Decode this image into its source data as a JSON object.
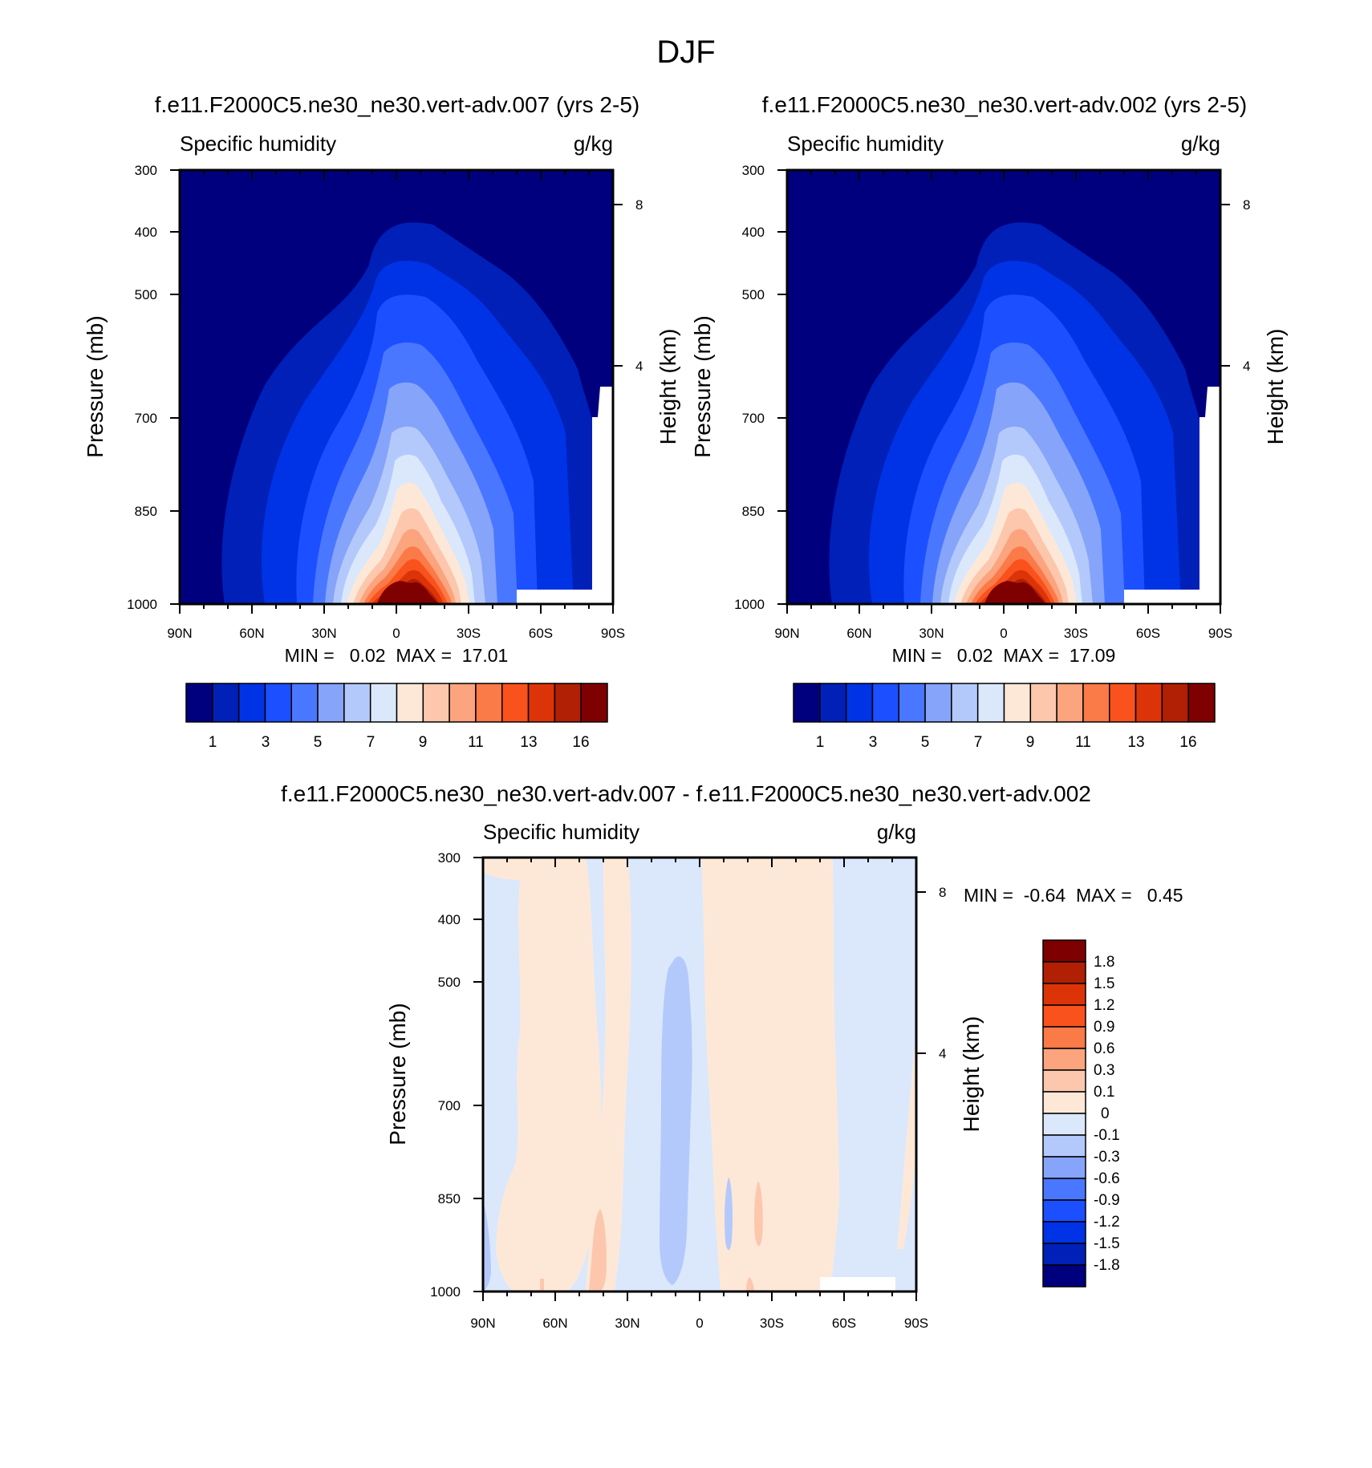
{
  "page_title": "DJF",
  "chart_data": [
    {
      "type": "heatmap",
      "title": "f.e11.F2000C5.ne30_ne30.vert-adv.007 (yrs 2-5)",
      "left_string": "Specific humidity",
      "right_string": "g/kg",
      "ylabel": "Pressure (mb)",
      "y2label": "Height (km)",
      "xticks": [
        "90N",
        "60N",
        "30N",
        "0",
        "30S",
        "60S",
        "90S"
      ],
      "yticks": [
        "300",
        "400",
        "500",
        "700",
        "850",
        "1000"
      ],
      "y2ticks": [
        "8",
        "4"
      ],
      "xlim": [
        90,
        -90
      ],
      "ylim": [
        1000,
        300
      ],
      "min_max": "MIN =   0.02  MAX =  17.01",
      "contour_levels": [
        0.5,
        1,
        2,
        3,
        4,
        5,
        6,
        7,
        8,
        9,
        10,
        11,
        12,
        13,
        14,
        16
      ],
      "colorbar_labels": [
        "1",
        "3",
        "5",
        "7",
        "9",
        "11",
        "13",
        "16"
      ],
      "colors": [
        "#00007f",
        "#0020b8",
        "#0033e6",
        "#1c4fff",
        "#4a77ff",
        "#86a4fa",
        "#b4c9fb",
        "#dbe8fc",
        "#fde8d8",
        "#fcc7ad",
        "#fba47d",
        "#fa7a48",
        "#f9521d",
        "#dc3408",
        "#b11f04",
        "#7f0000"
      ]
    },
    {
      "type": "heatmap",
      "title": "f.e11.F2000C5.ne30_ne30.vert-adv.002 (yrs 2-5)",
      "left_string": "Specific humidity",
      "right_string": "g/kg",
      "ylabel": "Pressure (mb)",
      "y2label": "Height (km)",
      "xticks": [
        "90N",
        "60N",
        "30N",
        "0",
        "30S",
        "60S",
        "90S"
      ],
      "yticks": [
        "300",
        "400",
        "500",
        "700",
        "850",
        "1000"
      ],
      "y2ticks": [
        "8",
        "4"
      ],
      "xlim": [
        90,
        -90
      ],
      "ylim": [
        1000,
        300
      ],
      "min_max": "MIN =   0.02  MAX =  17.09",
      "contour_levels": [
        0.5,
        1,
        2,
        3,
        4,
        5,
        6,
        7,
        8,
        9,
        10,
        11,
        12,
        13,
        14,
        16
      ],
      "colorbar_labels": [
        "1",
        "3",
        "5",
        "7",
        "9",
        "11",
        "13",
        "16"
      ],
      "colors": [
        "#00007f",
        "#0020b8",
        "#0033e6",
        "#1c4fff",
        "#4a77ff",
        "#86a4fa",
        "#b4c9fb",
        "#dbe8fc",
        "#fde8d8",
        "#fcc7ad",
        "#fba47d",
        "#fa7a48",
        "#f9521d",
        "#dc3408",
        "#b11f04",
        "#7f0000"
      ]
    },
    {
      "type": "heatmap",
      "title": "f.e11.F2000C5.ne30_ne30.vert-adv.007 - f.e11.F2000C5.ne30_ne30.vert-adv.002",
      "left_string": "Specific humidity",
      "right_string": "g/kg",
      "ylabel": "Pressure (mb)",
      "y2label": "Height (km)",
      "xticks": [
        "90N",
        "60N",
        "30N",
        "0",
        "30S",
        "60S",
        "90S"
      ],
      "yticks": [
        "300",
        "400",
        "500",
        "700",
        "850",
        "1000"
      ],
      "y2ticks": [
        "8",
        "4"
      ],
      "xlim": [
        90,
        -90
      ],
      "ylim": [
        1000,
        300
      ],
      "min_max": "MIN =  -0.64  MAX =   0.45",
      "colorbar_labels": [
        "1.8",
        "1.5",
        "1.2",
        "0.9",
        "0.6",
        "0.3",
        "0.1",
        "0",
        "-0.1",
        "-0.3",
        "-0.6",
        "-0.9",
        "-1.2",
        "-1.5",
        "-1.8"
      ],
      "colors": [
        "#7f0000",
        "#b11f04",
        "#dc3408",
        "#f9521d",
        "#fa7a48",
        "#fba47d",
        "#fcc7ad",
        "#fde8d8",
        "#dbe8fc",
        "#b4c9fb",
        "#86a4fa",
        "#4a77ff",
        "#1c4fff",
        "#0033e6",
        "#0020b8",
        "#00007f"
      ]
    }
  ]
}
